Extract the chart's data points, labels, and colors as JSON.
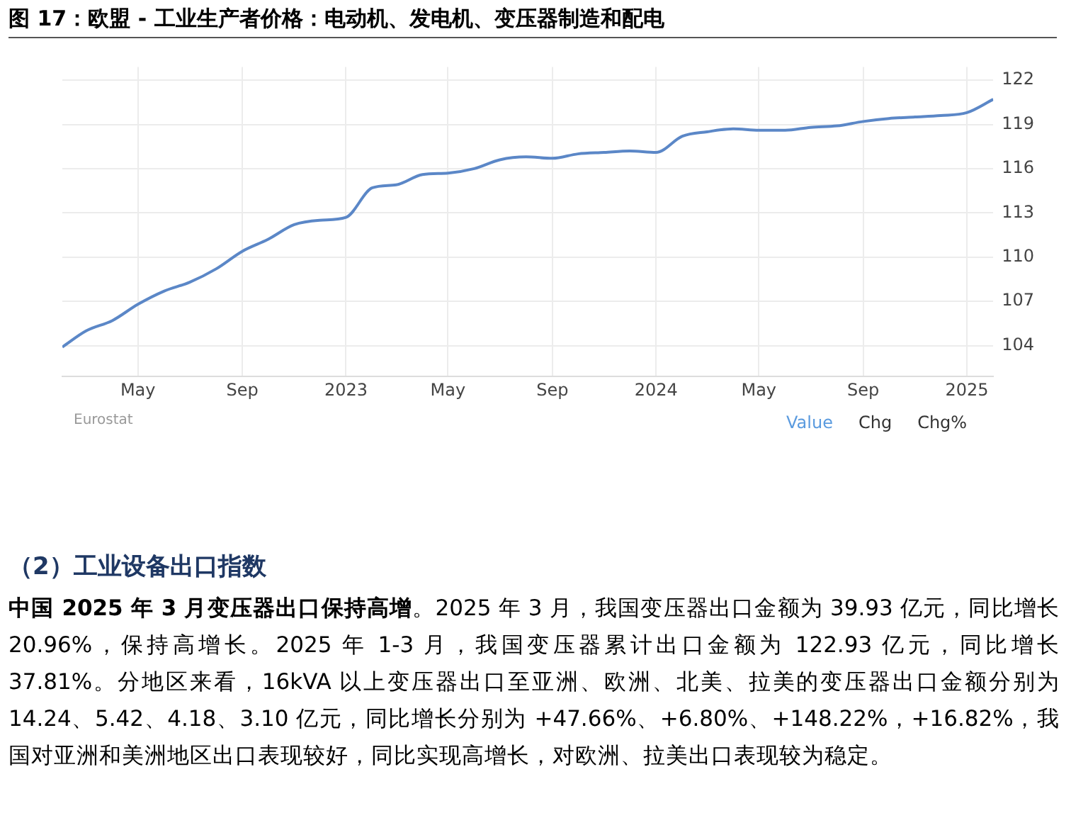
{
  "chart_data": {
    "type": "line",
    "title": "图 17：欧盟 - 工业生产者价格：电动机、发电机、变压器制造和配电",
    "x": [
      "2022-02",
      "2022-03",
      "2022-04",
      "2022-05",
      "2022-06",
      "2022-07",
      "2022-08",
      "2022-09",
      "2022-10",
      "2022-11",
      "2022-12",
      "2023-01",
      "2023-02",
      "2023-03",
      "2023-04",
      "2023-05",
      "2023-06",
      "2023-07",
      "2023-08",
      "2023-09",
      "2023-10",
      "2023-11",
      "2023-12",
      "2024-01",
      "2024-02",
      "2024-03",
      "2024-04",
      "2024-05",
      "2024-06",
      "2024-07",
      "2024-08",
      "2024-09",
      "2024-10",
      "2024-11",
      "2024-12",
      "2025-01",
      "2025-02"
    ],
    "series": [
      {
        "color": "#5b87c7",
        "values": [
          103.9,
          105.0,
          105.7,
          106.8,
          107.7,
          108.3,
          109.2,
          110.4,
          111.2,
          112.2,
          112.5,
          112.7,
          114.7,
          114.9,
          115.6,
          115.7,
          116.0,
          116.6,
          116.8,
          116.7,
          117.0,
          117.1,
          117.2,
          117.1,
          118.2,
          118.5,
          118.7,
          118.6,
          118.6,
          118.8,
          118.9,
          119.2,
          119.4,
          119.5,
          119.6,
          119.8,
          120.7
        ]
      }
    ],
    "xlim": [
      "2022-02",
      "2025-02"
    ],
    "xticks": [
      {
        "value": "2022-05",
        "label": "May"
      },
      {
        "value": "2022-09",
        "label": "Sep"
      },
      {
        "value": "2023-01",
        "label": "2023"
      },
      {
        "value": "2023-05",
        "label": "May"
      },
      {
        "value": "2023-09",
        "label": "Sep"
      },
      {
        "value": "2024-01",
        "label": "2024"
      },
      {
        "value": "2024-05",
        "label": "May"
      },
      {
        "value": "2024-09",
        "label": "Sep"
      },
      {
        "value": "2025-01",
        "label": "2025"
      }
    ],
    "ylim": [
      101.9,
      122.9
    ],
    "yticks": [
      104,
      107,
      110,
      113,
      116,
      119,
      122
    ],
    "grid": true,
    "legend": false,
    "marker": "none",
    "line_style": "solid",
    "annotations": [
      "Eurostat",
      "Value",
      "Chg",
      "Chg%",
      "（2）工业设备出口指数",
      "中国 2025 年 3 月变压器出口保持高增",
      "。2025 年 3 月，我国变压器出口金额为 39.93 亿元，同比增长 20.96%，保持高增长。2025 年 1-3 月，我国变压器累计出口金额为 122.93 亿元，同比增长 37.81%。分地区来看，16kVA 以上变压器出口至亚洲、欧洲、北美、拉美的变压器出口金额分别为 14.24、5.42、4.18、3.10 亿元，同比增长分别为 +47.66%、+6.80%、+148.22%，+16.82%，我国对亚洲和美洲地区出口表现较好，同比实现高增长，对欧洲、拉美出口表现较为稳定。"
    ]
  }
}
